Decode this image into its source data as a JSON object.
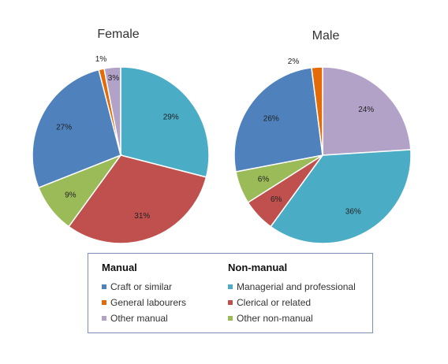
{
  "chart_data": [
    {
      "type": "pie",
      "title": "Female",
      "slices": [
        {
          "label": "Managerial and professional",
          "value": 29,
          "text": "29%",
          "color": "#4bacc6"
        },
        {
          "label": "Clerical or related",
          "value": 31,
          "text": "31%",
          "color": "#c0504d"
        },
        {
          "label": "Other non-manual",
          "value": 9,
          "text": "9%",
          "color": "#9bbb59"
        },
        {
          "label": "Craft or similar",
          "value": 27,
          "text": "27%",
          "color": "#4f81bd"
        },
        {
          "label": "General labourers",
          "value": 1,
          "text": "1%",
          "color": "#e36c09"
        },
        {
          "label": "Other manual",
          "value": 3,
          "text": "3%",
          "color": "#b3a2c7"
        }
      ]
    },
    {
      "type": "pie",
      "title": "Male",
      "slices": [
        {
          "label": "Other manual",
          "value": 24,
          "text": "24%",
          "color": "#b3a2c7"
        },
        {
          "label": "Managerial and professional",
          "value": 36,
          "text": "36%",
          "color": "#4bacc6"
        },
        {
          "label": "Clerical or related",
          "value": 6,
          "text": "6%",
          "color": "#c0504d"
        },
        {
          "label": "Other non-manual",
          "value": 6,
          "text": "6%",
          "color": "#9bbb59"
        },
        {
          "label": "Craft or similar",
          "value": 26,
          "text": "26%",
          "color": "#4f81bd"
        },
        {
          "label": "General labourers",
          "value": 2,
          "text": "2%",
          "color": "#e36c09"
        }
      ]
    }
  ],
  "legend": {
    "placement": "bottom",
    "groups": [
      {
        "heading": "Manual",
        "items": [
          {
            "label": "Craft or similar",
            "color": "#4f81bd"
          },
          {
            "label": "General labourers",
            "color": "#e36c09"
          },
          {
            "label": "Other manual",
            "color": "#b3a2c7"
          }
        ]
      },
      {
        "heading": "Non-manual",
        "items": [
          {
            "label": "Managerial and professional",
            "color": "#4bacc6"
          },
          {
            "label": "Clerical or related",
            "color": "#c0504d"
          },
          {
            "label": "Other non-manual",
            "color": "#9bbb59"
          }
        ]
      }
    ]
  }
}
